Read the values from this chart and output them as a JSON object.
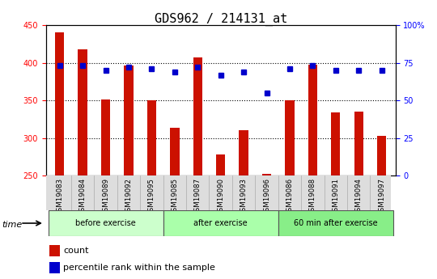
{
  "title": "GDS962 / 214131_at",
  "samples": [
    "GSM19083",
    "GSM19084",
    "GSM19089",
    "GSM19092",
    "GSM19095",
    "GSM19085",
    "GSM19087",
    "GSM19090",
    "GSM19093",
    "GSM19096",
    "GSM19086",
    "GSM19088",
    "GSM19091",
    "GSM19094",
    "GSM19097"
  ],
  "counts": [
    440,
    418,
    351,
    396,
    350,
    314,
    407,
    278,
    311,
    253,
    350,
    397,
    334,
    335,
    303
  ],
  "percentile_ranks": [
    73,
    73,
    70,
    72,
    71,
    69,
    72,
    67,
    69,
    55,
    71,
    73,
    70,
    70,
    70
  ],
  "groups": [
    {
      "label": "before exercise",
      "start": 0,
      "end": 5,
      "color": "#ccffcc"
    },
    {
      "label": "after exercise",
      "start": 5,
      "end": 10,
      "color": "#aaffaa"
    },
    {
      "label": "60 min after exercise",
      "start": 10,
      "end": 15,
      "color": "#88ee88"
    }
  ],
  "bar_color": "#cc1100",
  "dot_color": "#0000cc",
  "ylim_left": [
    250,
    450
  ],
  "ylim_right": [
    0,
    100
  ],
  "yticks_left": [
    250,
    300,
    350,
    400,
    450
  ],
  "yticks_right": [
    0,
    25,
    50,
    75,
    100
  ],
  "background_color": "#ffffff",
  "bar_width": 0.4,
  "title_fontsize": 11,
  "tick_fontsize": 7,
  "label_fontsize": 8
}
